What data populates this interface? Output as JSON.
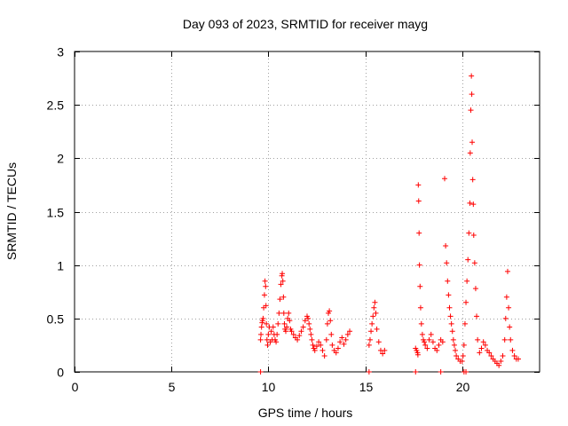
{
  "chart_data": {
    "type": "scatter",
    "title": "Day 093 of 2023, SRMTID for receiver mayg",
    "xlabel": "GPS time / hours",
    "ylabel": "SRMTID / TECUs",
    "xlim": [
      0,
      24.0
    ],
    "ylim": [
      0,
      3
    ],
    "xticks": [
      0,
      5,
      10,
      15,
      20
    ],
    "xtick_labels": [
      "0",
      "5",
      "10",
      "15",
      "20"
    ],
    "yticks": [
      0,
      0.5,
      1,
      1.5,
      2,
      2.5,
      3
    ],
    "ytick_labels": [
      "0",
      "0.5",
      "1",
      "1.5",
      "2",
      "2.5",
      "3"
    ],
    "grid": true,
    "marker": "+",
    "series": [
      {
        "name": "SRMTID",
        "color": "#ff0000",
        "x": [
          9.6,
          9.62,
          9.65,
          9.68,
          9.7,
          9.73,
          9.76,
          9.8,
          9.83,
          9.86,
          9.88,
          9.9,
          9.93,
          9.96,
          10.0,
          10.05,
          10.1,
          10.15,
          10.2,
          10.25,
          10.3,
          10.35,
          10.4,
          10.45,
          10.5,
          10.55,
          10.6,
          10.65,
          10.7,
          10.72,
          10.75,
          10.78,
          10.8,
          10.83,
          10.86,
          10.9,
          10.95,
          11.0,
          11.05,
          11.1,
          11.15,
          11.2,
          11.3,
          11.4,
          11.5,
          11.6,
          11.7,
          11.8,
          11.9,
          12.0,
          12.05,
          12.1,
          12.15,
          12.2,
          12.25,
          12.3,
          12.35,
          12.4,
          12.5,
          12.6,
          12.7,
          12.8,
          12.9,
          13.0,
          13.05,
          13.1,
          13.15,
          13.2,
          13.25,
          13.3,
          13.4,
          13.5,
          13.6,
          13.7,
          13.8,
          13.9,
          14.0,
          14.1,
          14.2,
          15.2,
          15.25,
          15.3,
          15.35,
          15.4,
          15.45,
          15.5,
          15.55,
          15.6,
          15.7,
          15.8,
          15.9,
          16.0,
          17.6,
          17.65,
          17.7,
          17.72,
          17.74,
          17.76,
          17.78,
          17.8,
          17.83,
          17.86,
          17.9,
          17.95,
          18.0,
          18.05,
          18.1,
          18.2,
          18.3,
          18.4,
          18.5,
          18.6,
          18.7,
          18.8,
          18.9,
          19.0,
          19.1,
          19.15,
          19.2,
          19.25,
          19.3,
          19.35,
          19.4,
          19.45,
          19.5,
          19.55,
          19.6,
          19.65,
          19.7,
          19.8,
          19.9,
          20.0,
          20.05,
          20.1,
          20.15,
          20.2,
          20.25,
          20.3,
          20.35,
          20.4,
          20.42,
          20.45,
          20.48,
          20.5,
          20.52,
          20.55,
          20.58,
          20.6,
          20.65,
          20.7,
          20.75,
          20.8,
          20.9,
          21.0,
          21.1,
          21.2,
          21.3,
          21.4,
          21.5,
          21.6,
          21.7,
          21.8,
          21.9,
          22.0,
          22.1,
          22.2,
          22.25,
          22.3,
          22.35,
          22.4,
          22.45,
          22.5,
          22.6,
          22.7,
          22.8,
          22.9,
          9.6,
          15.2,
          17.6,
          18.9,
          20.1,
          20.2
        ],
        "y": [
          0.3,
          0.35,
          0.42,
          0.46,
          0.48,
          0.5,
          0.6,
          0.72,
          0.85,
          0.8,
          0.62,
          0.45,
          0.3,
          0.25,
          0.35,
          0.42,
          0.28,
          0.38,
          0.3,
          0.42,
          0.35,
          0.3,
          0.28,
          0.35,
          0.45,
          0.55,
          0.68,
          0.82,
          0.9,
          0.92,
          0.85,
          0.7,
          0.55,
          0.45,
          0.4,
          0.38,
          0.42,
          0.5,
          0.55,
          0.48,
          0.4,
          0.38,
          0.35,
          0.32,
          0.3,
          0.34,
          0.38,
          0.42,
          0.48,
          0.52,
          0.5,
          0.45,
          0.4,
          0.35,
          0.3,
          0.25,
          0.22,
          0.2,
          0.24,
          0.28,
          0.25,
          0.2,
          0.15,
          0.3,
          0.45,
          0.55,
          0.57,
          0.48,
          0.35,
          0.25,
          0.2,
          0.18,
          0.22,
          0.28,
          0.32,
          0.26,
          0.3,
          0.35,
          0.38,
          0.25,
          0.3,
          0.38,
          0.45,
          0.52,
          0.6,
          0.65,
          0.55,
          0.4,
          0.28,
          0.2,
          0.17,
          0.2,
          0.22,
          0.2,
          0.18,
          0.16,
          1.75,
          1.6,
          1.3,
          1.0,
          0.8,
          0.6,
          0.45,
          0.35,
          0.3,
          0.28,
          0.25,
          0.22,
          0.3,
          0.35,
          0.28,
          0.22,
          0.2,
          0.25,
          0.3,
          0.28,
          1.81,
          1.18,
          1.02,
          0.85,
          0.72,
          0.6,
          0.52,
          0.45,
          0.38,
          0.3,
          0.25,
          0.2,
          0.15,
          0.12,
          0.1,
          0.1,
          0.15,
          0.25,
          0.45,
          0.65,
          0.85,
          1.05,
          1.3,
          1.58,
          2.05,
          2.45,
          2.77,
          2.6,
          2.15,
          1.8,
          1.57,
          1.28,
          1.02,
          0.78,
          0.52,
          0.3,
          0.18,
          0.22,
          0.28,
          0.25,
          0.2,
          0.18,
          0.15,
          0.12,
          0.1,
          0.08,
          0.06,
          0.1,
          0.15,
          0.3,
          0.5,
          0.7,
          0.94,
          0.6,
          0.42,
          0.3,
          0.2,
          0.15,
          0.12,
          0.12,
          0.0,
          0.0,
          0.0,
          0.0,
          0.0,
          0.0
        ]
      }
    ]
  }
}
